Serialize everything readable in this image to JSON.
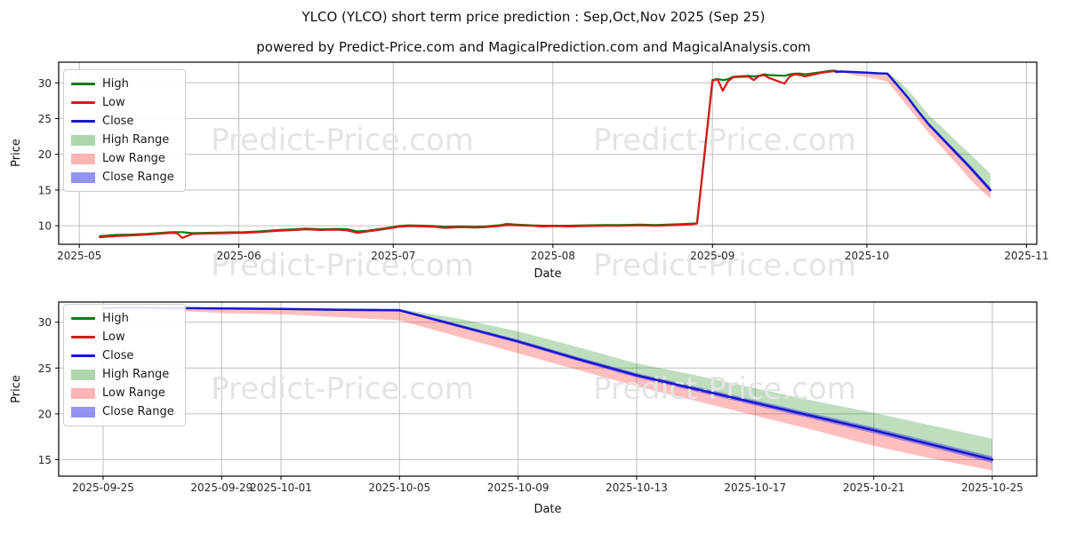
{
  "page": {
    "title": "YLCO (YLCO) short term price prediction : Sep,Oct,Nov 2025 (Sep 25)",
    "subtitle": "powered by Predict-Price.com and MagicalPrediction.com and MagicalAnalysis.com"
  },
  "watermark": {
    "text": "Predict-Price.com",
    "color": "#e4e4e4"
  },
  "colors": {
    "high_line": "#0b7a0b",
    "low_line": "#d91818",
    "close_line": "#1717d1",
    "high_range_fill": "rgba(21,138,21,0.28)",
    "low_range_fill": "rgba(255,40,40,0.30)",
    "close_range_fill": "rgba(58,58,230,0.48)",
    "grid": "#bfbfbf",
    "spine": "#000000",
    "tick_text": "#262626"
  },
  "legend": {
    "items": [
      {
        "label": "High",
        "swatch": "line",
        "color": "#0b7a0b"
      },
      {
        "label": "Low",
        "swatch": "line",
        "color": "#d91818"
      },
      {
        "label": "Close",
        "swatch": "line",
        "color": "#1717d1"
      },
      {
        "label": "High Range",
        "swatch": "patch",
        "color": "rgba(21,138,21,0.35)"
      },
      {
        "label": "Low Range",
        "swatch": "patch",
        "color": "rgba(255,40,40,0.35)"
      },
      {
        "label": "Close Range",
        "swatch": "patch",
        "color": "rgba(58,58,230,0.55)"
      }
    ]
  },
  "chart_data": {
    "type": "line",
    "series_shared": {
      "history": {
        "dates": [
          "2025-05-05",
          "2025-05-08",
          "2025-05-11",
          "2025-05-14",
          "2025-05-17",
          "2025-05-19",
          "2025-05-20",
          "2025-05-21",
          "2025-05-23",
          "2025-05-26",
          "2025-05-29",
          "2025-06-02",
          "2025-06-05",
          "2025-06-09",
          "2025-06-12",
          "2025-06-14",
          "2025-06-17",
          "2025-06-20",
          "2025-06-22",
          "2025-06-24",
          "2025-06-26",
          "2025-06-30",
          "2025-07-02",
          "2025-07-04",
          "2025-07-07",
          "2025-07-09",
          "2025-07-11",
          "2025-07-14",
          "2025-07-17",
          "2025-07-19",
          "2025-07-22",
          "2025-07-23",
          "2025-07-25",
          "2025-07-28",
          "2025-07-30",
          "2025-08-01",
          "2025-08-04",
          "2025-08-07",
          "2025-08-11",
          "2025-08-14",
          "2025-08-18",
          "2025-08-21",
          "2025-08-25",
          "2025-08-28",
          "2025-08-29",
          "2025-09-01",
          "2025-09-02",
          "2025-09-03",
          "2025-09-04",
          "2025-09-05",
          "2025-09-08",
          "2025-09-09",
          "2025-09-10",
          "2025-09-11",
          "2025-09-12",
          "2025-09-15",
          "2025-09-16",
          "2025-09-17",
          "2025-09-18",
          "2025-09-19",
          "2025-09-22",
          "2025-09-23",
          "2025-09-24",
          "2025-09-25"
        ],
        "high": [
          8.55,
          8.7,
          8.75,
          8.85,
          9.0,
          9.1,
          9.1,
          9.1,
          8.95,
          9.0,
          9.05,
          9.1,
          9.2,
          9.4,
          9.5,
          9.6,
          9.5,
          9.55,
          9.5,
          9.2,
          9.3,
          9.7,
          9.95,
          10.05,
          10.0,
          9.95,
          9.85,
          9.9,
          9.85,
          9.9,
          10.1,
          10.25,
          10.15,
          10.05,
          10.0,
          10.0,
          10.0,
          10.05,
          10.1,
          10.1,
          10.15,
          10.1,
          10.2,
          10.3,
          10.35,
          30.4,
          30.55,
          30.4,
          30.5,
          30.85,
          31.0,
          30.9,
          31.0,
          31.2,
          31.1,
          31.0,
          31.2,
          31.3,
          31.3,
          31.2,
          31.5,
          31.6,
          31.7,
          31.7
        ],
        "low": [
          8.4,
          8.55,
          8.65,
          8.75,
          8.9,
          9.0,
          8.95,
          8.3,
          8.85,
          8.9,
          8.95,
          9.0,
          9.1,
          9.3,
          9.4,
          9.5,
          9.4,
          9.45,
          9.35,
          9.0,
          9.2,
          9.6,
          9.85,
          9.95,
          9.9,
          9.85,
          9.7,
          9.8,
          9.75,
          9.8,
          10.0,
          10.1,
          10.05,
          10.0,
          9.9,
          9.95,
          9.9,
          9.95,
          10.0,
          10.0,
          10.05,
          10.0,
          10.1,
          10.2,
          10.3,
          30.3,
          30.5,
          28.9,
          30.2,
          30.8,
          30.9,
          30.4,
          30.95,
          31.1,
          30.7,
          29.9,
          30.9,
          31.2,
          31.1,
          30.9,
          31.4,
          31.5,
          31.6,
          31.65
        ]
      },
      "prediction": {
        "dates": [
          "2025-09-25",
          "2025-09-26",
          "2025-09-29",
          "2025-10-01",
          "2025-10-03",
          "2025-10-05",
          "2025-10-07",
          "2025-10-09",
          "2025-10-11",
          "2025-10-13",
          "2025-10-15",
          "2025-10-17",
          "2025-10-19",
          "2025-10-21",
          "2025-10-23",
          "2025-10-25"
        ],
        "close": [
          31.55,
          31.6,
          31.5,
          31.45,
          31.35,
          31.3,
          29.6,
          27.9,
          26.0,
          24.2,
          22.7,
          21.2,
          19.7,
          18.2,
          16.6,
          15.0
        ],
        "high_range_top": [
          31.6,
          31.65,
          31.6,
          31.55,
          31.5,
          31.45,
          30.4,
          29.0,
          27.3,
          25.5,
          24.2,
          22.8,
          21.4,
          20.1,
          18.7,
          17.3
        ],
        "low_range_bottom": [
          31.5,
          31.5,
          31.0,
          30.85,
          30.55,
          30.2,
          28.4,
          26.6,
          24.8,
          23.0,
          21.4,
          19.8,
          18.2,
          16.5,
          15.1,
          13.8
        ],
        "close_band_halfwidth": [
          0.05,
          0.06,
          0.09,
          0.1,
          0.12,
          0.15,
          0.17,
          0.2,
          0.22,
          0.24,
          0.26,
          0.28,
          0.3,
          0.32,
          0.33,
          0.35
        ]
      }
    },
    "charts": [
      {
        "id": "overview",
        "xlabel": "Date",
        "ylabel": "Price",
        "show_history": true,
        "x_ticks": [
          {
            "date": "2025-05-01",
            "label": "2025-05"
          },
          {
            "date": "2025-06-01",
            "label": "2025-06"
          },
          {
            "date": "2025-07-01",
            "label": "2025-07"
          },
          {
            "date": "2025-08-01",
            "label": "2025-08"
          },
          {
            "date": "2025-09-01",
            "label": "2025-09"
          },
          {
            "date": "2025-10-01",
            "label": "2025-10"
          },
          {
            "date": "2025-11-01",
            "label": "2025-11"
          }
        ],
        "y_ticks": [
          10,
          15,
          20,
          25,
          30
        ],
        "x_domain": [
          "2025-04-27",
          "2025-11-03"
        ],
        "y_domain": [
          7.4,
          32.9
        ]
      },
      {
        "id": "prediction_zoom",
        "xlabel": "Date",
        "ylabel": "Price",
        "show_history": false,
        "x_ticks": [
          {
            "date": "2025-09-25",
            "label": "2025-09-25"
          },
          {
            "date": "2025-09-29",
            "label": "2025-09-29"
          },
          {
            "date": "2025-10-01",
            "label": "2025-10-01"
          },
          {
            "date": "2025-10-05",
            "label": "2025-10-05"
          },
          {
            "date": "2025-10-09",
            "label": "2025-10-09"
          },
          {
            "date": "2025-10-13",
            "label": "2025-10-13"
          },
          {
            "date": "2025-10-17",
            "label": "2025-10-17"
          },
          {
            "date": "2025-10-21",
            "label": "2025-10-21"
          },
          {
            "date": "2025-10-25",
            "label": "2025-10-25"
          }
        ],
        "y_ticks": [
          15,
          20,
          25,
          30
        ],
        "x_domain": [
          "2025-09-23T12:00:00Z",
          "2025-10-26T12:00:00Z"
        ],
        "y_domain": [
          13.2,
          32.2
        ]
      }
    ]
  }
}
